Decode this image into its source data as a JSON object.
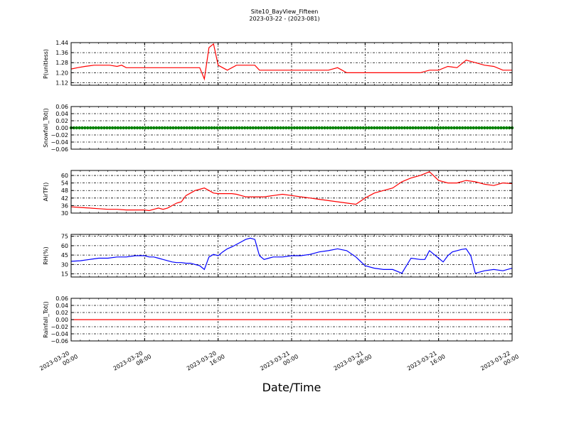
{
  "header": {
    "title": "Site10_BayView_Fifteen",
    "subtitle": "2023-03-22 - (2023-081)"
  },
  "xaxis_label": "Date/Time",
  "colors": {
    "red": "#ff0000",
    "green": "#008000",
    "blue": "#0000ff",
    "axes": "#000000"
  },
  "chart_data": [
    {
      "type": "line",
      "ylabel": "P(unitless)",
      "ylim": [
        1.1,
        1.44
      ],
      "yticks": [
        1.12,
        1.2,
        1.28,
        1.36,
        1.44
      ],
      "ytick_labels": [
        "1.12",
        "1.20",
        "1.28",
        "1.36",
        "1.44"
      ],
      "xlim": [
        0,
        48
      ],
      "grid": true,
      "series": [
        {
          "color": "#ff0000",
          "x": [
            0,
            0.7,
            1.5,
            2.5,
            3.5,
            4.2,
            5,
            5.5,
            6,
            6.5,
            7,
            8,
            9,
            10,
            11,
            12,
            13,
            14,
            14.5,
            15,
            15.5,
            16,
            16.5,
            17,
            18,
            19,
            20,
            20.5,
            21,
            22,
            23,
            24,
            25,
            26,
            27,
            28,
            29,
            30,
            31,
            32,
            33,
            34,
            35,
            36,
            37,
            38,
            39,
            40,
            41,
            42,
            43,
            44,
            45,
            46,
            47,
            48
          ],
          "y": [
            1.23,
            1.24,
            1.25,
            1.26,
            1.26,
            1.26,
            1.25,
            1.26,
            1.24,
            1.24,
            1.24,
            1.24,
            1.24,
            1.24,
            1.24,
            1.24,
            1.24,
            1.24,
            1.15,
            1.4,
            1.43,
            1.26,
            1.24,
            1.22,
            1.26,
            1.26,
            1.26,
            1.22,
            1.22,
            1.22,
            1.22,
            1.22,
            1.22,
            1.22,
            1.22,
            1.22,
            1.24,
            1.2,
            1.2,
            1.2,
            1.2,
            1.2,
            1.2,
            1.2,
            1.2,
            1.2,
            1.22,
            1.22,
            1.25,
            1.24,
            1.3,
            1.28,
            1.26,
            1.25,
            1.22,
            1.22
          ]
        }
      ]
    },
    {
      "type": "line",
      "ylabel": "Snowfall_Tot()",
      "ylim": [
        -0.06,
        0.06
      ],
      "yticks": [
        -0.06,
        -0.04,
        -0.02,
        0.0,
        0.02,
        0.04,
        0.06
      ],
      "ytick_labels": [
        "−0.06",
        "−0.04",
        "−0.02",
        "0.00",
        "0.02",
        "0.04",
        "0.06"
      ],
      "xlim": [
        0,
        48
      ],
      "grid": true,
      "markers": true,
      "series": [
        {
          "color": "#008000",
          "x": [
            0,
            48
          ],
          "y": [
            0,
            0
          ]
        }
      ]
    },
    {
      "type": "line",
      "ylabel": "AirTF()",
      "ylim": [
        30,
        64
      ],
      "yticks": [
        30,
        36,
        42,
        48,
        54,
        60
      ],
      "ytick_labels": [
        "30",
        "36",
        "42",
        "48",
        "54",
        "60"
      ],
      "xlim": [
        0,
        48
      ],
      "grid": true,
      "series": [
        {
          "color": "#ff0000",
          "x": [
            0,
            1,
            2,
            3,
            4,
            5,
            6,
            7,
            8,
            8.5,
            9,
            9.5,
            10,
            10.5,
            11,
            11.5,
            12,
            12.5,
            13,
            13.5,
            14,
            14.5,
            15,
            15.5,
            16,
            16.5,
            17,
            17.5,
            18,
            18.5,
            19,
            20,
            21,
            22,
            23,
            24,
            25,
            26,
            27,
            28,
            29,
            30,
            31,
            32,
            33,
            34,
            35,
            36,
            37,
            38,
            39,
            40,
            41,
            42,
            43,
            44,
            45,
            46,
            47,
            48
          ],
          "y": [
            35,
            34.5,
            34,
            33.5,
            33,
            33,
            32.5,
            32.5,
            32.5,
            32,
            33,
            34,
            33,
            34,
            36,
            38,
            39,
            44,
            46,
            48,
            49,
            50,
            48,
            46,
            45.5,
            45.5,
            45.5,
            45.5,
            45,
            44,
            43,
            43,
            43,
            44,
            45,
            44,
            43,
            42,
            41,
            40,
            39,
            38,
            37,
            42,
            46,
            48,
            50,
            55,
            58,
            60,
            63,
            56,
            54,
            54,
            56,
            55,
            53,
            52,
            54,
            53.5
          ]
        }
      ]
    },
    {
      "type": "line",
      "ylabel": "RH(%)",
      "ylim": [
        10,
        78
      ],
      "yticks": [
        15,
        30,
        45,
        60,
        75
      ],
      "ytick_labels": [
        "15",
        "30",
        "45",
        "60",
        "75"
      ],
      "xlim": [
        0,
        48
      ],
      "grid": true,
      "series": [
        {
          "color": "#0000ff",
          "x": [
            0,
            1,
            2,
            3,
            4,
            5,
            6,
            7,
            8,
            8.5,
            9,
            9.5,
            10,
            10.5,
            11,
            11.5,
            12,
            12.5,
            13,
            13.5,
            14,
            14.5,
            15,
            15.5,
            16,
            16.5,
            17,
            17.5,
            18,
            18.5,
            19,
            19.5,
            20,
            20.5,
            21,
            21.5,
            22,
            23,
            24,
            25,
            26,
            27,
            28,
            29,
            30,
            31,
            32,
            33,
            34,
            35,
            36,
            37,
            38,
            38.5,
            39,
            39.5,
            40,
            40.5,
            41,
            41.5,
            42,
            42.5,
            43,
            43.5,
            44,
            45,
            46,
            47,
            48
          ],
          "y": [
            35,
            36,
            38,
            40,
            40,
            42,
            42,
            44,
            44,
            42,
            42,
            40,
            38,
            36,
            34,
            33,
            33,
            32,
            32,
            30,
            28,
            22,
            42,
            46,
            44,
            50,
            55,
            58,
            62,
            66,
            70,
            72,
            70,
            44,
            38,
            40,
            42,
            42,
            44,
            44,
            46,
            50,
            52,
            55,
            52,
            42,
            28,
            24,
            22,
            22,
            16,
            40,
            38,
            38,
            52,
            46,
            40,
            34,
            44,
            50,
            52,
            54,
            55,
            44,
            16,
            20,
            22,
            20,
            24
          ]
        }
      ]
    },
    {
      "type": "line",
      "ylabel": "Rainfall_Tot()",
      "ylim": [
        -0.06,
        0.06
      ],
      "yticks": [
        -0.06,
        -0.04,
        -0.02,
        0.0,
        0.02,
        0.04,
        0.06
      ],
      "ytick_labels": [
        "−0.06",
        "−0.04",
        "−0.02",
        "0.00",
        "0.02",
        "0.04",
        "0.06"
      ],
      "xlim": [
        0,
        48
      ],
      "grid": true,
      "series": [
        {
          "color": "#ff0000",
          "x": [
            0,
            48
          ],
          "y": [
            0,
            0
          ]
        }
      ]
    }
  ],
  "x_ticks": [
    {
      "value": 0,
      "line1": "2023-03-20",
      "line2": "00:00"
    },
    {
      "value": 8,
      "line1": "2023-03-20",
      "line2": "08:00"
    },
    {
      "value": 16,
      "line1": "2023-03-20",
      "line2": "16:00"
    },
    {
      "value": 24,
      "line1": "2023-03-21",
      "line2": "00:00"
    },
    {
      "value": 32,
      "line1": "2023-03-21",
      "line2": "08:00"
    },
    {
      "value": 40,
      "line1": "2023-03-21",
      "line2": "16:00"
    },
    {
      "value": 48,
      "line1": "2023-03-22",
      "line2": "00:00"
    }
  ]
}
